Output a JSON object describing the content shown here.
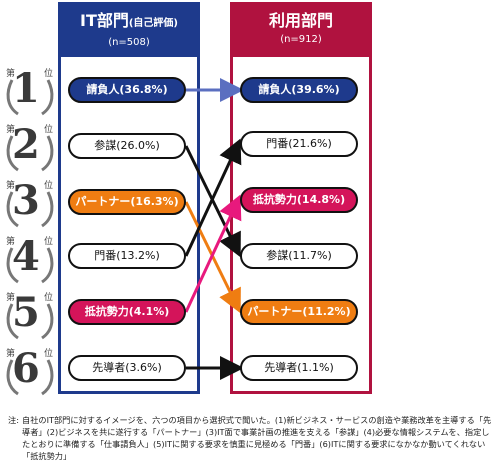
{
  "ranks": [
    {
      "pre": "第",
      "num": "1",
      "post": "位"
    },
    {
      "pre": "第",
      "num": "2",
      "post": "位"
    },
    {
      "pre": "第",
      "num": "3",
      "post": "位"
    },
    {
      "pre": "第",
      "num": "4",
      "post": "位"
    },
    {
      "pre": "第",
      "num": "5",
      "post": "位"
    },
    {
      "pre": "第",
      "num": "6",
      "post": "位"
    }
  ],
  "it_panel": {
    "title": "IT部門",
    "subtitle": "(自己評価)",
    "n": "(n=508)"
  },
  "user_panel": {
    "title": "利用部門",
    "n": "(n=912)"
  },
  "it_items": [
    {
      "label": "請負人(36.8%)",
      "style": "blue"
    },
    {
      "label": "参謀(26.0%)",
      "style": "white"
    },
    {
      "label": "パートナー(16.3%)",
      "style": "orange"
    },
    {
      "label": "門番(13.2%)",
      "style": "white"
    },
    {
      "label": "抵抗勢力(4.1%)",
      "style": "magenta"
    },
    {
      "label": "先導者(3.6%)",
      "style": "white"
    }
  ],
  "user_items": [
    {
      "label": "請負人(39.6%)",
      "style": "blue"
    },
    {
      "label": "門番(21.6%)",
      "style": "white"
    },
    {
      "label": "抵抗勢力(14.8%)",
      "style": "magenta"
    },
    {
      "label": "参謀(11.7%)",
      "style": "white"
    },
    {
      "label": "パートナー(11.2%)",
      "style": "orange"
    },
    {
      "label": "先導者(1.1%)",
      "style": "white"
    }
  ],
  "colors": {
    "it": "#1e3a8c",
    "user": "#b0123f",
    "blue_arrow": "#5b6fc0",
    "black": "#111111",
    "orange": "#ef7d12",
    "magenta": "#e8197d"
  },
  "note": {
    "lead": "注:",
    "text": "自社のIT部門に対するイメージを、六つの項目から選択式で聞いた。(1)新ビジネス・サービスの創造や業務改革を主導する「先導者」(2)ビジネスを共に遂行する「パートナー」(3)IT面で事業計画の推進を支える「参謀」(4)必要な情報システムを、指定したとおりに準備する「仕事請負人」(5)ITに関する要求を慎重に見極める「門番」(6)ITに関する要求になかなか動いてくれない「抵抗勢力」"
  }
}
